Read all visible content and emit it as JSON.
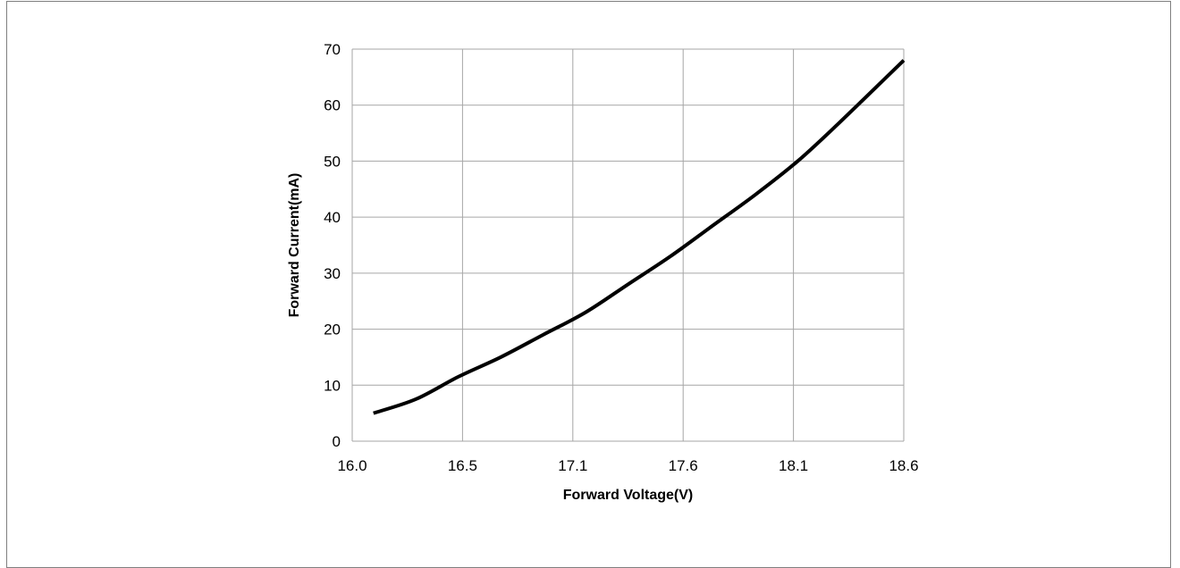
{
  "chart_data": {
    "type": "line",
    "xlabel": "Forward Voltage(V)",
    "ylabel": "Forward Current(mA)",
    "x_ticks": [
      "16.0",
      "16.5",
      "17.1",
      "17.6",
      "18.1",
      "18.6"
    ],
    "y_ticks": [
      "0",
      "10",
      "20",
      "30",
      "40",
      "50",
      "60",
      "70"
    ],
    "xlim": [
      16.0,
      18.6
    ],
    "ylim": [
      0,
      70
    ],
    "grid": true,
    "legend": "none",
    "colors": {
      "line": "#000000",
      "grid": "#a6a6a6",
      "frame": "#7f7f7f"
    },
    "series": [
      {
        "x": [
          16.1,
          16.3,
          16.5,
          16.7,
          16.9,
          17.1,
          17.3,
          17.5,
          17.7,
          17.9,
          18.1,
          18.3,
          18.6
        ],
        "y": [
          5,
          7.5,
          11.5,
          15,
          19,
          23,
          28,
          33,
          38.5,
          44,
          50,
          57,
          68
        ]
      }
    ]
  }
}
